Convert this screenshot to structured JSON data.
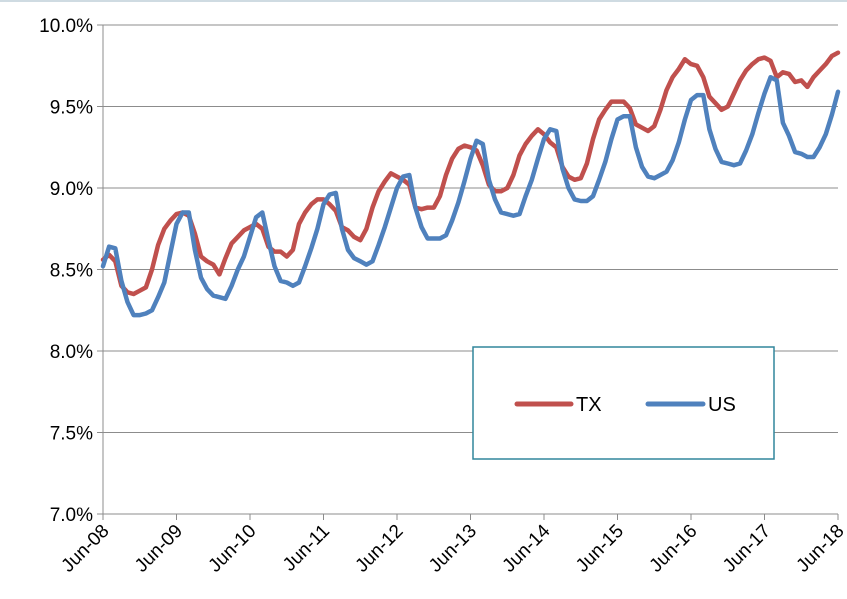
{
  "chart_data": {
    "type": "line",
    "title": "",
    "xlabel": "",
    "ylabel": "",
    "ylim": [
      7.0,
      10.0
    ],
    "y_ticks": [
      "7.0%",
      "7.5%",
      "8.0%",
      "8.5%",
      "9.0%",
      "9.5%",
      "10.0%"
    ],
    "y_tick_values": [
      7.0,
      7.5,
      8.0,
      8.5,
      9.0,
      9.5,
      10.0
    ],
    "x_ticks": [
      "Jun-08",
      "Jun-09",
      "Jun-10",
      "Jun-11",
      "Jun-12",
      "Jun-13",
      "Jun-14",
      "Jun-15",
      "Jun-16",
      "Jun-17",
      "Jun-18"
    ],
    "x_range": [
      "2008-06",
      "2018-06"
    ],
    "grid": "horizontal",
    "legend_position": "lower-right",
    "series": [
      {
        "name": "TX",
        "color": "#C0504D",
        "points": [
          [
            "2008-06",
            8.56
          ],
          [
            "2008-07",
            8.59
          ],
          [
            "2008-08",
            8.55
          ],
          [
            "2008-09",
            8.4
          ],
          [
            "2008-10",
            8.36
          ],
          [
            "2008-11",
            8.35
          ],
          [
            "2008-12",
            8.37
          ],
          [
            "2009-01",
            8.39
          ],
          [
            "2009-02",
            8.5
          ],
          [
            "2009-03",
            8.65
          ],
          [
            "2009-04",
            8.75
          ],
          [
            "2009-05",
            8.8
          ],
          [
            "2009-06",
            8.84
          ],
          [
            "2009-07",
            8.85
          ],
          [
            "2009-08",
            8.83
          ],
          [
            "2009-09",
            8.72
          ],
          [
            "2009-10",
            8.58
          ],
          [
            "2009-11",
            8.55
          ],
          [
            "2009-12",
            8.53
          ],
          [
            "2010-01",
            8.47
          ],
          [
            "2010-02",
            8.57
          ],
          [
            "2010-03",
            8.66
          ],
          [
            "2010-04",
            8.7
          ],
          [
            "2010-05",
            8.74
          ],
          [
            "2010-06",
            8.76
          ],
          [
            "2010-07",
            8.78
          ],
          [
            "2010-08",
            8.75
          ],
          [
            "2010-09",
            8.64
          ],
          [
            "2010-10",
            8.61
          ],
          [
            "2010-11",
            8.61
          ],
          [
            "2010-12",
            8.58
          ],
          [
            "2011-01",
            8.62
          ],
          [
            "2011-02",
            8.78
          ],
          [
            "2011-03",
            8.85
          ],
          [
            "2011-04",
            8.9
          ],
          [
            "2011-05",
            8.93
          ],
          [
            "2011-06",
            8.93
          ],
          [
            "2011-07",
            8.9
          ],
          [
            "2011-08",
            8.86
          ],
          [
            "2011-09",
            8.76
          ],
          [
            "2011-10",
            8.74
          ],
          [
            "2011-11",
            8.7
          ],
          [
            "2011-12",
            8.68
          ],
          [
            "2012-01",
            8.75
          ],
          [
            "2012-02",
            8.88
          ],
          [
            "2012-03",
            8.98
          ],
          [
            "2012-04",
            9.04
          ],
          [
            "2012-05",
            9.09
          ],
          [
            "2012-06",
            9.07
          ],
          [
            "2012-07",
            9.05
          ],
          [
            "2012-08",
            9.02
          ],
          [
            "2012-09",
            8.88
          ],
          [
            "2012-10",
            8.87
          ],
          [
            "2012-11",
            8.88
          ],
          [
            "2012-12",
            8.88
          ],
          [
            "2013-01",
            8.95
          ],
          [
            "2013-02",
            9.08
          ],
          [
            "2013-03",
            9.18
          ],
          [
            "2013-04",
            9.24
          ],
          [
            "2013-05",
            9.26
          ],
          [
            "2013-06",
            9.25
          ],
          [
            "2013-07",
            9.23
          ],
          [
            "2013-08",
            9.14
          ],
          [
            "2013-09",
            9.02
          ],
          [
            "2013-10",
            8.98
          ],
          [
            "2013-11",
            8.98
          ],
          [
            "2013-12",
            9.0
          ],
          [
            "2014-01",
            9.08
          ],
          [
            "2014-02",
            9.2
          ],
          [
            "2014-03",
            9.27
          ],
          [
            "2014-04",
            9.32
          ],
          [
            "2014-05",
            9.36
          ],
          [
            "2014-06",
            9.33
          ],
          [
            "2014-07",
            9.28
          ],
          [
            "2014-08",
            9.25
          ],
          [
            "2014-09",
            9.13
          ],
          [
            "2014-10",
            9.07
          ],
          [
            "2014-11",
            9.05
          ],
          [
            "2014-12",
            9.06
          ],
          [
            "2015-01",
            9.15
          ],
          [
            "2015-02",
            9.3
          ],
          [
            "2015-03",
            9.42
          ],
          [
            "2015-04",
            9.48
          ],
          [
            "2015-05",
            9.53
          ],
          [
            "2015-06",
            9.53
          ],
          [
            "2015-07",
            9.53
          ],
          [
            "2015-08",
            9.49
          ],
          [
            "2015-09",
            9.39
          ],
          [
            "2015-10",
            9.37
          ],
          [
            "2015-11",
            9.35
          ],
          [
            "2015-12",
            9.38
          ],
          [
            "2016-01",
            9.48
          ],
          [
            "2016-02",
            9.6
          ],
          [
            "2016-03",
            9.68
          ],
          [
            "2016-04",
            9.73
          ],
          [
            "2016-05",
            9.79
          ],
          [
            "2016-06",
            9.76
          ],
          [
            "2016-07",
            9.75
          ],
          [
            "2016-08",
            9.68
          ],
          [
            "2016-09",
            9.56
          ],
          [
            "2016-10",
            9.52
          ],
          [
            "2016-11",
            9.48
          ],
          [
            "2016-12",
            9.5
          ],
          [
            "2017-01",
            9.58
          ],
          [
            "2017-02",
            9.66
          ],
          [
            "2017-03",
            9.72
          ],
          [
            "2017-04",
            9.76
          ],
          [
            "2017-05",
            9.79
          ],
          [
            "2017-06",
            9.8
          ],
          [
            "2017-07",
            9.78
          ],
          [
            "2017-08",
            9.68
          ],
          [
            "2017-09",
            9.71
          ],
          [
            "2017-10",
            9.7
          ],
          [
            "2017-11",
            9.65
          ],
          [
            "2017-12",
            9.66
          ],
          [
            "2018-01",
            9.62
          ],
          [
            "2018-02",
            9.68
          ],
          [
            "2018-03",
            9.72
          ],
          [
            "2018-04",
            9.76
          ],
          [
            "2018-05",
            9.81
          ],
          [
            "2018-06",
            9.83
          ]
        ]
      },
      {
        "name": "US",
        "color": "#4F81BD",
        "points": [
          [
            "2008-06",
            8.52
          ],
          [
            "2008-07",
            8.64
          ],
          [
            "2008-08",
            8.63
          ],
          [
            "2008-09",
            8.43
          ],
          [
            "2008-10",
            8.3
          ],
          [
            "2008-11",
            8.22
          ],
          [
            "2008-12",
            8.22
          ],
          [
            "2009-01",
            8.23
          ],
          [
            "2009-02",
            8.25
          ],
          [
            "2009-03",
            8.33
          ],
          [
            "2009-04",
            8.42
          ],
          [
            "2009-05",
            8.6
          ],
          [
            "2009-06",
            8.78
          ],
          [
            "2009-07",
            8.85
          ],
          [
            "2009-08",
            8.85
          ],
          [
            "2009-09",
            8.62
          ],
          [
            "2009-10",
            8.45
          ],
          [
            "2009-11",
            8.38
          ],
          [
            "2009-12",
            8.34
          ],
          [
            "2010-01",
            8.33
          ],
          [
            "2010-02",
            8.32
          ],
          [
            "2010-03",
            8.4
          ],
          [
            "2010-04",
            8.5
          ],
          [
            "2010-05",
            8.58
          ],
          [
            "2010-06",
            8.7
          ],
          [
            "2010-07",
            8.82
          ],
          [
            "2010-08",
            8.85
          ],
          [
            "2010-09",
            8.68
          ],
          [
            "2010-10",
            8.52
          ],
          [
            "2010-11",
            8.43
          ],
          [
            "2010-12",
            8.42
          ],
          [
            "2011-01",
            8.4
          ],
          [
            "2011-02",
            8.42
          ],
          [
            "2011-03",
            8.52
          ],
          [
            "2011-04",
            8.63
          ],
          [
            "2011-05",
            8.75
          ],
          [
            "2011-06",
            8.9
          ],
          [
            "2011-07",
            8.96
          ],
          [
            "2011-08",
            8.97
          ],
          [
            "2011-09",
            8.75
          ],
          [
            "2011-10",
            8.62
          ],
          [
            "2011-11",
            8.57
          ],
          [
            "2011-12",
            8.55
          ],
          [
            "2012-01",
            8.53
          ],
          [
            "2012-02",
            8.55
          ],
          [
            "2012-03",
            8.65
          ],
          [
            "2012-04",
            8.76
          ],
          [
            "2012-05",
            8.88
          ],
          [
            "2012-06",
            9.0
          ],
          [
            "2012-07",
            9.07
          ],
          [
            "2012-08",
            9.08
          ],
          [
            "2012-09",
            8.88
          ],
          [
            "2012-10",
            8.76
          ],
          [
            "2012-11",
            8.69
          ],
          [
            "2012-12",
            8.69
          ],
          [
            "2013-01",
            8.69
          ],
          [
            "2013-02",
            8.71
          ],
          [
            "2013-03",
            8.8
          ],
          [
            "2013-04",
            8.91
          ],
          [
            "2013-05",
            9.04
          ],
          [
            "2013-06",
            9.18
          ],
          [
            "2013-07",
            9.29
          ],
          [
            "2013-08",
            9.27
          ],
          [
            "2013-09",
            9.05
          ],
          [
            "2013-10",
            8.93
          ],
          [
            "2013-11",
            8.85
          ],
          [
            "2013-12",
            8.84
          ],
          [
            "2014-01",
            8.83
          ],
          [
            "2014-02",
            8.84
          ],
          [
            "2014-03",
            8.95
          ],
          [
            "2014-04",
            9.05
          ],
          [
            "2014-05",
            9.18
          ],
          [
            "2014-06",
            9.3
          ],
          [
            "2014-07",
            9.36
          ],
          [
            "2014-08",
            9.35
          ],
          [
            "2014-09",
            9.12
          ],
          [
            "2014-10",
            9.0
          ],
          [
            "2014-11",
            8.93
          ],
          [
            "2014-12",
            8.92
          ],
          [
            "2015-01",
            8.92
          ],
          [
            "2015-02",
            8.95
          ],
          [
            "2015-03",
            9.05
          ],
          [
            "2015-04",
            9.16
          ],
          [
            "2015-05",
            9.3
          ],
          [
            "2015-06",
            9.42
          ],
          [
            "2015-07",
            9.44
          ],
          [
            "2015-08",
            9.44
          ],
          [
            "2015-09",
            9.25
          ],
          [
            "2015-10",
            9.13
          ],
          [
            "2015-11",
            9.07
          ],
          [
            "2015-12",
            9.06
          ],
          [
            "2016-01",
            9.08
          ],
          [
            "2016-02",
            9.1
          ],
          [
            "2016-03",
            9.17
          ],
          [
            "2016-04",
            9.28
          ],
          [
            "2016-05",
            9.42
          ],
          [
            "2016-06",
            9.54
          ],
          [
            "2016-07",
            9.57
          ],
          [
            "2016-08",
            9.57
          ],
          [
            "2016-09",
            9.36
          ],
          [
            "2016-10",
            9.24
          ],
          [
            "2016-11",
            9.16
          ],
          [
            "2016-12",
            9.15
          ],
          [
            "2017-01",
            9.14
          ],
          [
            "2017-02",
            9.15
          ],
          [
            "2017-03",
            9.23
          ],
          [
            "2017-04",
            9.33
          ],
          [
            "2017-05",
            9.46
          ],
          [
            "2017-06",
            9.58
          ],
          [
            "2017-07",
            9.68
          ],
          [
            "2017-08",
            9.66
          ],
          [
            "2017-09",
            9.4
          ],
          [
            "2017-10",
            9.32
          ],
          [
            "2017-11",
            9.22
          ],
          [
            "2017-12",
            9.21
          ],
          [
            "2018-01",
            9.19
          ],
          [
            "2018-02",
            9.19
          ],
          [
            "2018-03",
            9.25
          ],
          [
            "2018-04",
            9.33
          ],
          [
            "2018-05",
            9.45
          ],
          [
            "2018-06",
            9.59
          ]
        ]
      }
    ]
  }
}
